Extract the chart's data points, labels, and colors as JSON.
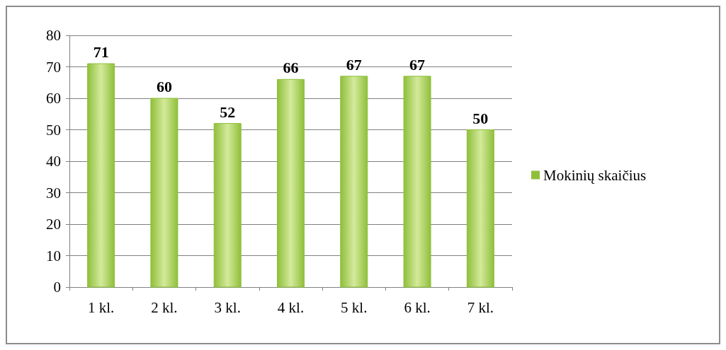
{
  "chart_data": {
    "type": "bar",
    "categories": [
      "1 kl.",
      "2 kl.",
      "3 kl.",
      "4 kl.",
      "5 kl.",
      "6 kl.",
      "7 kl."
    ],
    "series": [
      {
        "name": "Mokinių skaičius",
        "color": "#8fbf3a",
        "values": [
          71,
          60,
          52,
          66,
          67,
          67,
          50
        ]
      }
    ],
    "ylim": [
      0,
      80
    ],
    "yticks": [
      0,
      10,
      20,
      30,
      40,
      50,
      60,
      70,
      80
    ],
    "grid": "y",
    "data_labels": true,
    "legend": "right"
  }
}
